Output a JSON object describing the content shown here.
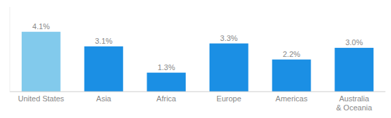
{
  "chart_data": {
    "type": "bar",
    "categories": [
      "United States",
      "Asia",
      "Africa",
      "Europe",
      "Americas",
      "Australia\n& Oceania"
    ],
    "values": [
      4.1,
      3.1,
      1.3,
      3.3,
      2.2,
      3.0
    ],
    "value_labels": [
      "4.1%",
      "3.1%",
      "1.3%",
      "3.3%",
      "2.2%",
      "3.0%"
    ],
    "colors": [
      "#82CAEC",
      "#1B8FE4",
      "#1B8FE4",
      "#1B8FE4",
      "#1B8FE4",
      "#1B8FE4"
    ],
    "ylim": [
      0,
      5.8
    ],
    "data_labels": true,
    "tick_labels": "x",
    "grid": false
  }
}
